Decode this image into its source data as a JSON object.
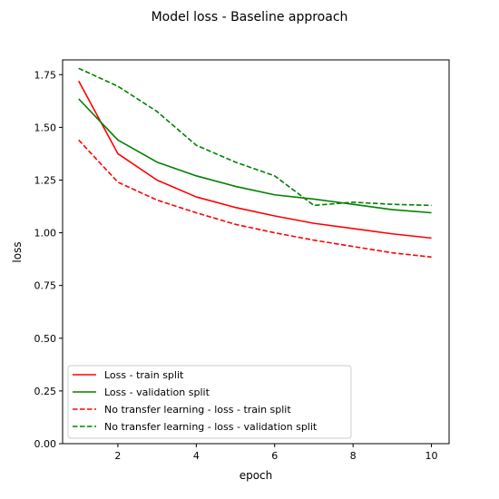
{
  "chart_data": {
    "type": "line",
    "title": "Model loss - Baseline approach",
    "xlabel": "epoch",
    "ylabel": "loss",
    "xlim": [
      0.59,
      10.45
    ],
    "ylim": [
      0.0,
      1.82
    ],
    "xticks": [
      2,
      4,
      6,
      8,
      10
    ],
    "xtick_labels": [
      "2",
      "4",
      "6",
      "8",
      "10"
    ],
    "yticks": [
      0.0,
      0.25,
      0.5,
      0.75,
      1.0,
      1.25,
      1.5,
      1.75
    ],
    "ytick_labels": [
      "0.00",
      "0.25",
      "0.50",
      "0.75",
      "1.00",
      "1.25",
      "1.50",
      "1.75"
    ],
    "grid": false,
    "legend_position": "lower-left",
    "x": [
      1,
      2,
      3,
      4,
      5,
      6,
      7,
      8,
      9,
      10
    ],
    "series": [
      {
        "name": "Loss - train split",
        "color": "#ff0000",
        "dash": "solid",
        "values": [
          1.72,
          1.375,
          1.25,
          1.17,
          1.12,
          1.08,
          1.045,
          1.02,
          0.995,
          0.975
        ]
      },
      {
        "name": "Loss - validation split",
        "color": "#008000",
        "dash": "solid",
        "values": [
          1.635,
          1.44,
          1.335,
          1.27,
          1.22,
          1.18,
          1.16,
          1.135,
          1.11,
          1.095
        ]
      },
      {
        "name": "No transfer learning - loss - train split",
        "color": "#ff0000",
        "dash": "dashed",
        "values": [
          1.44,
          1.24,
          1.155,
          1.095,
          1.04,
          1.0,
          0.965,
          0.935,
          0.905,
          0.885
        ]
      },
      {
        "name": "No transfer learning - loss - validation split",
        "color": "#008000",
        "dash": "dashed",
        "values": [
          1.78,
          1.695,
          1.575,
          1.415,
          1.335,
          1.27,
          1.13,
          1.145,
          1.135,
          1.13
        ]
      }
    ]
  }
}
